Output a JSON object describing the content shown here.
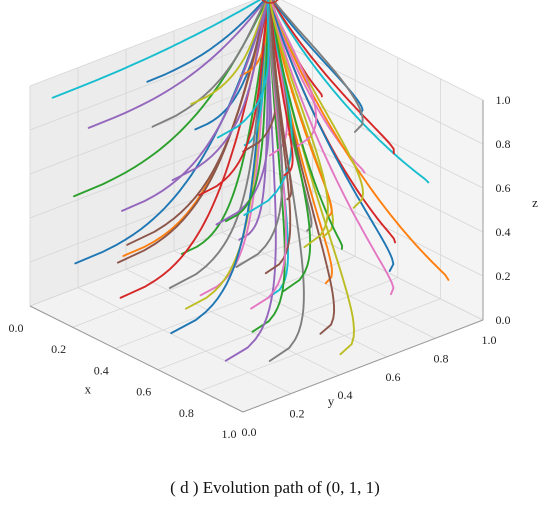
{
  "chart_data": {
    "type": "line",
    "projection": "3d",
    "title": "",
    "caption": "( d )  Evolution path of (0, 1, 1)",
    "xlabel": "x",
    "ylabel": "y",
    "zlabel": "z",
    "xlim": [
      0,
      1
    ],
    "ylim": [
      0,
      1
    ],
    "zlim": [
      0,
      1
    ],
    "xticks": [
      "0.0",
      "0.2",
      "0.4",
      "0.6",
      "0.8",
      "1.0"
    ],
    "yticks": [
      "0.0",
      "0.2",
      "0.4",
      "0.6",
      "0.8",
      "1.0"
    ],
    "zticks": [
      "0.0",
      "0.2",
      "0.4",
      "0.6",
      "0.8",
      "1.0"
    ],
    "grid": true,
    "converges_to": [
      0,
      1,
      1
    ],
    "highlight_marker": {
      "point": [
        0,
        1,
        1
      ],
      "color": "#c0392b"
    },
    "series_colors": [
      "#1f77b4",
      "#ff7f0e",
      "#2ca02c",
      "#d62728",
      "#9467bd",
      "#8c564b",
      "#e377c2",
      "#7f7f7f",
      "#bcbd22",
      "#17becf"
    ],
    "series": [
      {
        "start": [
          0.1,
          0.1,
          0.2
        ]
      },
      {
        "start": [
          0.1,
          0.3,
          0.15
        ]
      },
      {
        "start": [
          0.15,
          0.5,
          0.1
        ]
      },
      {
        "start": [
          0.2,
          0.2,
          0.05
        ]
      },
      {
        "start": [
          0.25,
          0.65,
          0.15
        ]
      },
      {
        "start": [
          0.3,
          0.1,
          0.3
        ]
      },
      {
        "start": [
          0.35,
          0.4,
          0.05
        ]
      },
      {
        "start": [
          0.4,
          0.8,
          0.2
        ]
      },
      {
        "start": [
          0.45,
          0.25,
          0.1
        ]
      },
      {
        "start": [
          0.5,
          0.55,
          0.05
        ]
      },
      {
        "start": [
          0.55,
          0.1,
          0.1
        ]
      },
      {
        "start": [
          0.6,
          0.7,
          0.1
        ]
      },
      {
        "start": [
          0.65,
          0.35,
          0.05
        ]
      },
      {
        "start": [
          0.7,
          0.9,
          0.25
        ]
      },
      {
        "start": [
          0.75,
          0.15,
          0.05
        ]
      },
      {
        "start": [
          0.8,
          0.5,
          0.05
        ]
      },
      {
        "start": [
          0.85,
          0.75,
          0.15
        ]
      },
      {
        "start": [
          0.9,
          0.2,
          0.1
        ]
      },
      {
        "start": [
          0.95,
          0.45,
          0.05
        ]
      },
      {
        "start": [
          0.05,
          0.85,
          0.4
        ]
      },
      {
        "start": [
          0.1,
          0.6,
          0.6
        ]
      },
      {
        "start": [
          0.2,
          0.9,
          0.5
        ]
      },
      {
        "start": [
          0.15,
          0.05,
          0.55
        ]
      },
      {
        "start": [
          0.3,
          0.95,
          0.7
        ]
      },
      {
        "start": [
          0.05,
          0.2,
          0.75
        ]
      },
      {
        "start": [
          0.4,
          0.05,
          0.45
        ]
      },
      {
        "start": [
          0.5,
          0.95,
          0.45
        ]
      },
      {
        "start": [
          0.6,
          0.05,
          0.35
        ]
      },
      {
        "start": [
          0.7,
          0.6,
          0.4
        ]
      },
      {
        "start": [
          0.8,
          0.95,
          0.55
        ]
      },
      {
        "start": [
          0.9,
          0.7,
          0.3
        ]
      },
      {
        "start": [
          0.95,
          0.9,
          0.2
        ]
      },
      {
        "start": [
          0.85,
          0.3,
          0.35
        ]
      },
      {
        "start": [
          0.75,
          0.85,
          0.7
        ]
      },
      {
        "start": [
          0.65,
          0.2,
          0.6
        ]
      },
      {
        "start": [
          0.55,
          0.4,
          0.8
        ]
      },
      {
        "start": [
          0.45,
          0.6,
          0.65
        ]
      },
      {
        "start": [
          0.35,
          0.2,
          0.9
        ]
      },
      {
        "start": [
          0.25,
          0.45,
          0.85
        ]
      },
      {
        "start": [
          0.05,
          0.05,
          0.95
        ]
      },
      {
        "start": [
          0.1,
          0.4,
          0.9
        ]
      },
      {
        "start": [
          0.2,
          0.7,
          0.85
        ]
      },
      {
        "start": [
          0.3,
          0.55,
          0.3
        ]
      },
      {
        "start": [
          0.4,
          0.35,
          0.55
        ]
      },
      {
        "start": [
          0.5,
          0.15,
          0.75
        ]
      },
      {
        "start": [
          0.6,
          0.45,
          0.25
        ]
      },
      {
        "start": [
          0.7,
          0.3,
          0.2
        ]
      },
      {
        "start": [
          0.8,
          0.15,
          0.5
        ]
      },
      {
        "start": [
          0.9,
          0.55,
          0.65
        ]
      },
      {
        "start": [
          0.95,
          0.05,
          0.85
        ]
      },
      {
        "start": [
          0.65,
          0.8,
          0.85
        ]
      },
      {
        "start": [
          0.55,
          0.75,
          0.35
        ]
      },
      {
        "start": [
          0.45,
          0.9,
          0.1
        ]
      },
      {
        "start": [
          0.35,
          0.75,
          0.45
        ]
      },
      {
        "start": [
          0.15,
          0.25,
          0.4
        ]
      },
      {
        "start": [
          0.25,
          0.85,
          0.25
        ]
      },
      {
        "start": [
          0.75,
          0.45,
          0.9
        ]
      },
      {
        "start": [
          0.85,
          0.6,
          0.95
        ]
      },
      {
        "start": [
          0.95,
          0.3,
          0.6
        ]
      },
      {
        "start": [
          0.6,
          0.25,
          0.95
        ]
      }
    ]
  }
}
